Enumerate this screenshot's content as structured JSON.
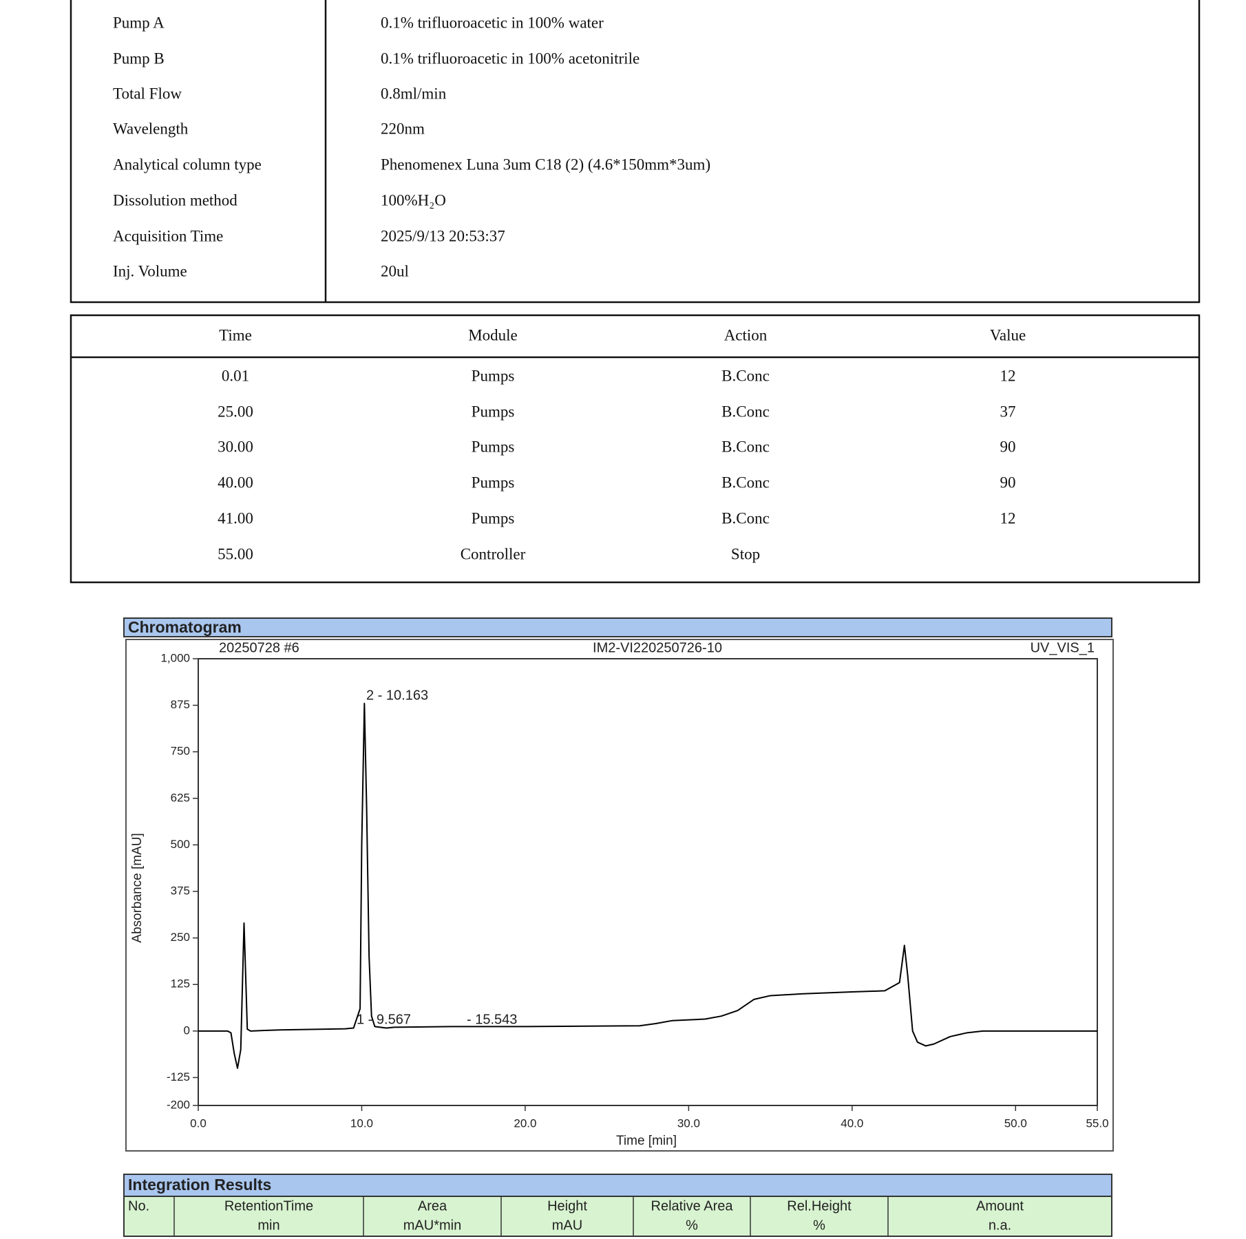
{
  "method": {
    "rows": [
      [
        "Pump A",
        "0.1% trifluoroacetic in 100% water"
      ],
      [
        "Pump B",
        "0.1% trifluoroacetic in 100% acetonitrile"
      ],
      [
        "Total Flow",
        "0.8ml/min"
      ],
      [
        "Wavelength",
        "220nm"
      ],
      [
        "Analytical column type",
        "Phenomenex Luna 3um C18 (2) (4.6*150mm*3um)"
      ],
      [
        "Dissolution method",
        "100%H₂O"
      ],
      [
        "Acquisition Time",
        "2025/9/13 20:53:37"
      ],
      [
        "Inj. Volume",
        "20ul"
      ]
    ]
  },
  "gradient": {
    "header": [
      "Time",
      "Module",
      "Action",
      "Value"
    ],
    "rows": [
      [
        "0.01",
        "Pumps",
        "B.Conc",
        "12"
      ],
      [
        "25.00",
        "Pumps",
        "B.Conc",
        "37"
      ],
      [
        "30.00",
        "Pumps",
        "B.Conc",
        "90"
      ],
      [
        "40.00",
        "Pumps",
        "B.Conc",
        "90"
      ],
      [
        "41.00",
        "Pumps",
        "B.Conc",
        "12"
      ],
      [
        "55.00",
        "Controller",
        "Stop"
      ]
    ]
  },
  "chart_data": {
    "type": "line",
    "title": "Chromatogram",
    "sample": "20250728 #6",
    "injection": "IM2-VI220250726-10",
    "channel": "UV_VIS_1",
    "x_label": "Time [min]",
    "y_label": "Absorbance [mAU]",
    "annotations": [
      "2 - 10.163",
      "1 - 9.567",
      "- 15.543"
    ],
    "color": "#000000",
    "x": [
      0,
      1.8,
      2.0,
      2.2,
      2.4,
      2.6,
      2.8,
      2.9,
      3.0,
      3.2,
      5,
      9,
      9.5,
      9.9,
      10.0,
      10.163,
      10.3,
      10.45,
      10.6,
      10.8,
      11.5,
      12,
      15.5,
      20,
      27,
      28,
      29,
      31,
      32,
      33,
      33.5,
      34,
      35,
      37,
      40,
      42,
      42.9,
      43.2,
      43.4,
      43.7,
      44,
      44.5,
      45,
      46,
      47,
      48,
      55
    ],
    "values": [
      0,
      0,
      -5,
      -60,
      -100,
      -50,
      290,
      150,
      5,
      0,
      3,
      6,
      8,
      60,
      500,
      880,
      600,
      200,
      40,
      12,
      8,
      10,
      12,
      12,
      14,
      20,
      28,
      32,
      40,
      55,
      70,
      85,
      95,
      100,
      105,
      108,
      130,
      230,
      150,
      0,
      -30,
      -40,
      -35,
      -15,
      -5,
      0,
      0
    ],
    "xlim": [
      0,
      55
    ],
    "ylim": [
      -200,
      1000
    ],
    "xticks": [
      {
        "value": 0,
        "label": "0.0"
      },
      {
        "value": 10,
        "label": "10.0"
      },
      {
        "value": 20,
        "label": "20.0"
      },
      {
        "value": 30,
        "label": "30.0"
      },
      {
        "value": 40,
        "label": "40.0"
      },
      {
        "value": 50,
        "label": "50.0"
      },
      {
        "value": 55,
        "label": "55.0"
      }
    ],
    "yticks": [
      -200,
      -125,
      0,
      125,
      250,
      375,
      500,
      625,
      750,
      875,
      {
        "value": 1000,
        "label": "1,000"
      }
    ]
  },
  "integration": {
    "title": "Integration Results",
    "header": [
      [
        "No."
      ],
      [
        "RetentionTime",
        "min"
      ],
      [
        "Area",
        "mAU*min"
      ],
      [
        "Height",
        "mAU"
      ],
      [
        "Relative Area",
        "%"
      ],
      [
        "Rel.Height",
        "%"
      ],
      [
        "Amount",
        "n.a."
      ]
    ]
  }
}
